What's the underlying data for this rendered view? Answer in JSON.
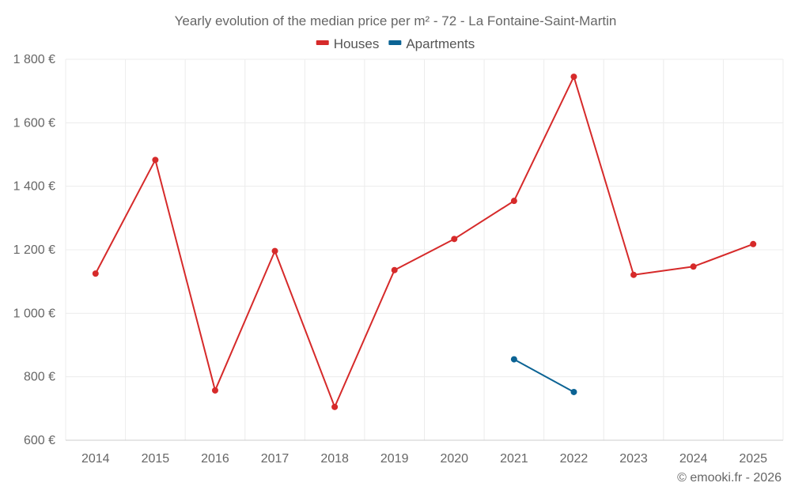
{
  "chart_data": {
    "type": "line",
    "title": "Yearly evolution of the median price per m² - 72 - La Fontaine-Saint-Martin",
    "xlabel": "",
    "ylabel": "",
    "categories": [
      "2014",
      "2015",
      "2016",
      "2017",
      "2018",
      "2019",
      "2020",
      "2021",
      "2022",
      "2023",
      "2024",
      "2025"
    ],
    "y_tick_values": [
      600,
      800,
      1000,
      1200,
      1400,
      1600,
      1800
    ],
    "y_tick_labels": [
      "600 €",
      "800 €",
      "1 000 €",
      "1 200 €",
      "1 400 €",
      "1 600 €",
      "1 800 €"
    ],
    "ylim": [
      600,
      1800
    ],
    "grid": true,
    "legend_position": "top-center",
    "series": [
      {
        "name": "Houses",
        "color": "#d62a2a",
        "values": [
          1125,
          1483,
          757,
          1196,
          705,
          1136,
          1234,
          1354,
          1745,
          1121,
          1147,
          1218
        ]
      },
      {
        "name": "Apartments",
        "color": "#0b6394",
        "values": [
          null,
          null,
          null,
          null,
          null,
          null,
          null,
          855,
          752,
          null,
          null,
          null
        ]
      }
    ],
    "credit": "© emooki.fr - 2026"
  }
}
